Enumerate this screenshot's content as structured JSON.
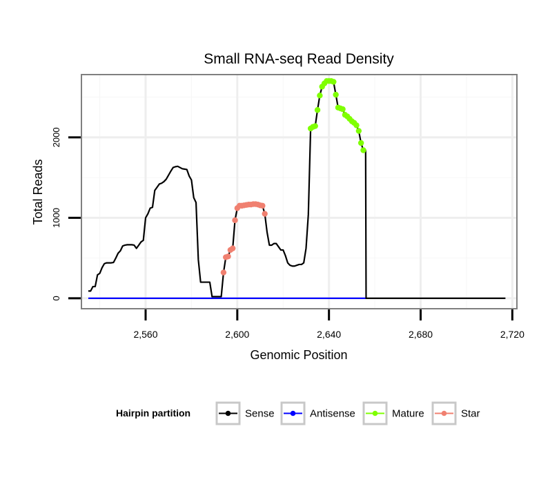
{
  "chart_data": {
    "type": "line",
    "title": "Small RNA-seq Read Density",
    "xlabel": "Genomic Position",
    "ylabel": "Total Reads",
    "xlim": [
      2532,
      2722
    ],
    "ylim": [
      -130,
      2780
    ],
    "x_ticks": [
      2560,
      2600,
      2640,
      2680,
      2720
    ],
    "x_tick_labels": [
      "2,560",
      "2,600",
      "2,640",
      "2,680",
      "2,720"
    ],
    "y_ticks": [
      0,
      1000,
      2000
    ],
    "y_tick_labels": [
      "0",
      "1000",
      "2000"
    ],
    "grid": true,
    "legend": {
      "title": "Hairpin partition",
      "position": "bottom",
      "entries": [
        "Sense",
        "Antisense",
        "Mature",
        "Star"
      ]
    },
    "series": [
      {
        "name": "Sense",
        "color": "#000000",
        "points": [
          [
            2535,
            90
          ],
          [
            2536,
            90
          ],
          [
            2537,
            145
          ],
          [
            2538,
            145
          ],
          [
            2539,
            290
          ],
          [
            2540,
            310
          ],
          [
            2541,
            380
          ],
          [
            2542,
            430
          ],
          [
            2543,
            440
          ],
          [
            2544,
            440
          ],
          [
            2545,
            440
          ],
          [
            2546,
            445
          ],
          [
            2547,
            500
          ],
          [
            2548,
            560
          ],
          [
            2549,
            590
          ],
          [
            2550,
            650
          ],
          [
            2551,
            660
          ],
          [
            2552,
            665
          ],
          [
            2553,
            665
          ],
          [
            2554,
            665
          ],
          [
            2555,
            660
          ],
          [
            2556,
            620
          ],
          [
            2557,
            660
          ],
          [
            2558,
            700
          ],
          [
            2559,
            720
          ],
          [
            2560,
            1000
          ],
          [
            2561,
            1050
          ],
          [
            2562,
            1120
          ],
          [
            2563,
            1130
          ],
          [
            2564,
            1340
          ],
          [
            2565,
            1380
          ],
          [
            2566,
            1420
          ],
          [
            2567,
            1430
          ],
          [
            2568,
            1450
          ],
          [
            2569,
            1480
          ],
          [
            2570,
            1530
          ],
          [
            2571,
            1580
          ],
          [
            2572,
            1625
          ],
          [
            2573,
            1635
          ],
          [
            2574,
            1640
          ],
          [
            2575,
            1625
          ],
          [
            2576,
            1610
          ],
          [
            2577,
            1605
          ],
          [
            2578,
            1600
          ],
          [
            2579,
            1520
          ],
          [
            2580,
            1470
          ],
          [
            2581,
            1250
          ],
          [
            2582,
            1190
          ],
          [
            2583,
            480
          ],
          [
            2584,
            200
          ],
          [
            2585,
            200
          ],
          [
            2586,
            200
          ],
          [
            2587,
            200
          ],
          [
            2588,
            200
          ],
          [
            2589,
            20
          ],
          [
            2590,
            20
          ],
          [
            2591,
            20
          ],
          [
            2592,
            20
          ],
          [
            2593,
            20
          ],
          [
            2594,
            320
          ],
          [
            2595,
            510
          ],
          [
            2596,
            520
          ],
          [
            2597,
            600
          ],
          [
            2598,
            620
          ],
          [
            2599,
            970
          ],
          [
            2600,
            1120
          ],
          [
            2601,
            1150
          ],
          [
            2602,
            1150
          ],
          [
            2603,
            1155
          ],
          [
            2604,
            1160
          ],
          [
            2605,
            1165
          ],
          [
            2606,
            1165
          ],
          [
            2607,
            1170
          ],
          [
            2608,
            1170
          ],
          [
            2609,
            1165
          ],
          [
            2610,
            1155
          ],
          [
            2611,
            1150
          ],
          [
            2612,
            1050
          ],
          [
            2613,
            820
          ],
          [
            2614,
            660
          ],
          [
            2615,
            660
          ],
          [
            2616,
            680
          ],
          [
            2617,
            680
          ],
          [
            2618,
            640
          ],
          [
            2619,
            600
          ],
          [
            2620,
            600
          ],
          [
            2621,
            530
          ],
          [
            2622,
            440
          ],
          [
            2623,
            410
          ],
          [
            2624,
            400
          ],
          [
            2625,
            400
          ],
          [
            2626,
            410
          ],
          [
            2627,
            420
          ],
          [
            2628,
            420
          ],
          [
            2629,
            440
          ],
          [
            2630,
            620
          ],
          [
            2631,
            1040
          ],
          [
            2632,
            2110
          ],
          [
            2633,
            2130
          ],
          [
            2634,
            2140
          ],
          [
            2635,
            2340
          ],
          [
            2636,
            2520
          ],
          [
            2637,
            2630
          ],
          [
            2638,
            2670
          ],
          [
            2639,
            2700
          ],
          [
            2640,
            2700
          ],
          [
            2641,
            2700
          ],
          [
            2642,
            2690
          ],
          [
            2643,
            2530
          ],
          [
            2644,
            2370
          ],
          [
            2645,
            2360
          ],
          [
            2646,
            2350
          ],
          [
            2647,
            2280
          ],
          [
            2648,
            2260
          ],
          [
            2649,
            2230
          ],
          [
            2650,
            2200
          ],
          [
            2651,
            2180
          ],
          [
            2652,
            2150
          ],
          [
            2653,
            2080
          ],
          [
            2654,
            1930
          ],
          [
            2655,
            1840
          ],
          [
            2656,
            1840
          ],
          [
            2656.2,
            0
          ],
          [
            2660,
            0
          ],
          [
            2680,
            0
          ],
          [
            2700,
            0
          ],
          [
            2717,
            0
          ]
        ]
      },
      {
        "name": "Antisense",
        "color": "#0000ff",
        "points": [
          [
            2535,
            0
          ],
          [
            2656.3,
            0
          ]
        ]
      },
      {
        "name": "Mature",
        "color": "#7fff00",
        "points": [
          [
            2632,
            2110
          ],
          [
            2633,
            2130
          ],
          [
            2634,
            2140
          ],
          [
            2635,
            2340
          ],
          [
            2636,
            2520
          ],
          [
            2637,
            2630
          ],
          [
            2638,
            2670
          ],
          [
            2639,
            2700
          ],
          [
            2640,
            2700
          ],
          [
            2641,
            2700
          ],
          [
            2642,
            2690
          ],
          [
            2643,
            2530
          ],
          [
            2644,
            2370
          ],
          [
            2645,
            2360
          ],
          [
            2646,
            2350
          ],
          [
            2647,
            2280
          ],
          [
            2648,
            2260
          ],
          [
            2649,
            2230
          ],
          [
            2650,
            2200
          ],
          [
            2651,
            2180
          ],
          [
            2652,
            2150
          ],
          [
            2653,
            2080
          ],
          [
            2654,
            1930
          ],
          [
            2655,
            1840
          ]
        ]
      },
      {
        "name": "Star",
        "color": "#f08070",
        "points": [
          [
            2594,
            320
          ],
          [
            2595,
            510
          ],
          [
            2596,
            520
          ],
          [
            2597,
            600
          ],
          [
            2598,
            620
          ],
          [
            2599,
            970
          ],
          [
            2600,
            1120
          ],
          [
            2601,
            1150
          ],
          [
            2602,
            1150
          ],
          [
            2603,
            1155
          ],
          [
            2604,
            1160
          ],
          [
            2605,
            1165
          ],
          [
            2606,
            1165
          ],
          [
            2607,
            1170
          ],
          [
            2608,
            1170
          ],
          [
            2609,
            1165
          ],
          [
            2610,
            1155
          ],
          [
            2611,
            1150
          ],
          [
            2612,
            1050
          ]
        ]
      }
    ]
  }
}
